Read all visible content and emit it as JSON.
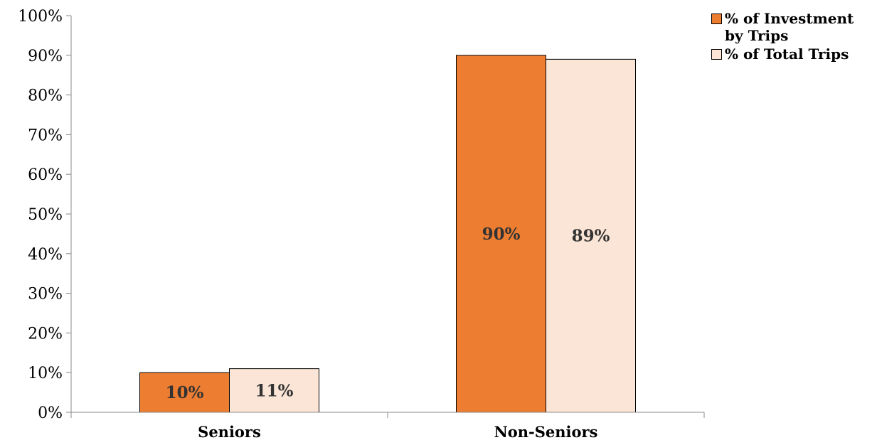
{
  "chart_data": {
    "type": "bar",
    "categories": [
      "Seniors",
      "Non-Seniors"
    ],
    "series": [
      {
        "name": "% of Investment by Trips",
        "values": [
          10,
          90
        ],
        "labels": [
          "10%",
          "90%"
        ],
        "color": "#ED7D31"
      },
      {
        "name": "% of Total Trips",
        "values": [
          11,
          89
        ],
        "labels": [
          "11%",
          "89%"
        ],
        "color": "#FBE5D6"
      }
    ],
    "yticks": [
      "0%",
      "10%",
      "20%",
      "30%",
      "40%",
      "50%",
      "60%",
      "70%",
      "80%",
      "90%",
      "100%"
    ],
    "ylim": [
      0,
      100
    ],
    "grid": false,
    "legend": "top-right"
  }
}
